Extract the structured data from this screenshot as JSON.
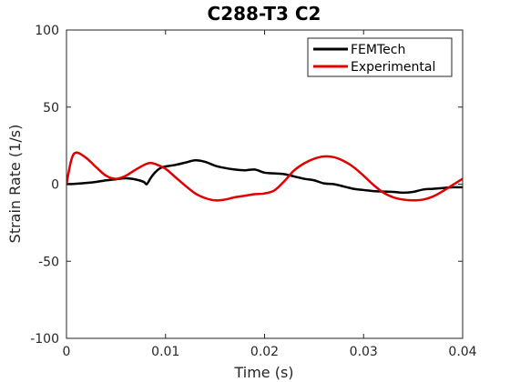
{
  "chart_data": {
    "type": "line",
    "title": "C288-T3 C2",
    "xlabel": "Time (s)",
    "ylabel": "Strain Rate (1/s)",
    "xlim": [
      0,
      0.04
    ],
    "ylim": [
      -100,
      100
    ],
    "xticks": [
      0,
      0.01,
      0.02,
      0.03,
      0.04
    ],
    "xtick_labels": [
      "0",
      "0.01",
      "0.02",
      "0.03",
      "0.04"
    ],
    "yticks": [
      -100,
      -50,
      0,
      50,
      100
    ],
    "ytick_labels": [
      "-100",
      "-50",
      "0",
      "50",
      "100"
    ],
    "grid": false,
    "legend_position": "top-right",
    "series": [
      {
        "name": "FEMTech",
        "color": "#000000",
        "x": [
          0,
          0.001,
          0.002,
          0.003,
          0.004,
          0.005,
          0.006,
          0.007,
          0.0078,
          0.0081,
          0.0085,
          0.009,
          0.0095,
          0.01,
          0.011,
          0.012,
          0.013,
          0.014,
          0.015,
          0.016,
          0.017,
          0.018,
          0.019,
          0.02,
          0.021,
          0.022,
          0.023,
          0.024,
          0.025,
          0.026,
          0.027,
          0.028,
          0.029,
          0.03,
          0.031,
          0.032,
          0.033,
          0.034,
          0.035,
          0.036,
          0.037,
          0.038,
          0.039,
          0.04
        ],
        "y": [
          0,
          0.3,
          0.8,
          1.5,
          2.5,
          3.2,
          3.8,
          3.0,
          1.5,
          0.0,
          4.0,
          8.0,
          10.5,
          11.5,
          12.5,
          14.0,
          15.5,
          14.5,
          12.0,
          10.5,
          9.5,
          9.0,
          9.5,
          7.5,
          7.0,
          6.5,
          5.0,
          3.5,
          2.5,
          0.5,
          0.0,
          -1.5,
          -3.0,
          -3.8,
          -4.5,
          -4.8,
          -5.0,
          -5.5,
          -5.0,
          -3.5,
          -3.0,
          -2.5,
          -2.0,
          -2.0
        ]
      },
      {
        "name": "Experimental",
        "color": "#e00000",
        "x": [
          0,
          0.0005,
          0.001,
          0.002,
          0.003,
          0.004,
          0.005,
          0.006,
          0.007,
          0.008,
          0.0085,
          0.009,
          0.01,
          0.011,
          0.012,
          0.013,
          0.014,
          0.015,
          0.016,
          0.017,
          0.018,
          0.019,
          0.02,
          0.021,
          0.022,
          0.023,
          0.024,
          0.025,
          0.026,
          0.027,
          0.028,
          0.029,
          0.03,
          0.031,
          0.032,
          0.033,
          0.034,
          0.035,
          0.036,
          0.037,
          0.038,
          0.039,
          0.04
        ],
        "y": [
          0,
          16,
          20.5,
          17,
          11,
          5.5,
          3.5,
          5.5,
          9.5,
          13.0,
          13.8,
          13.0,
          10.0,
          4.5,
          -1.0,
          -6.0,
          -9.0,
          -10.5,
          -10.0,
          -8.5,
          -7.5,
          -6.5,
          -6.0,
          -4.0,
          2.0,
          9.0,
          13.5,
          16.5,
          18.0,
          17.5,
          15.0,
          11.0,
          5.5,
          -0.5,
          -5.5,
          -8.5,
          -10.0,
          -10.5,
          -10.0,
          -8.0,
          -4.5,
          -0.5,
          3.5
        ]
      }
    ]
  }
}
